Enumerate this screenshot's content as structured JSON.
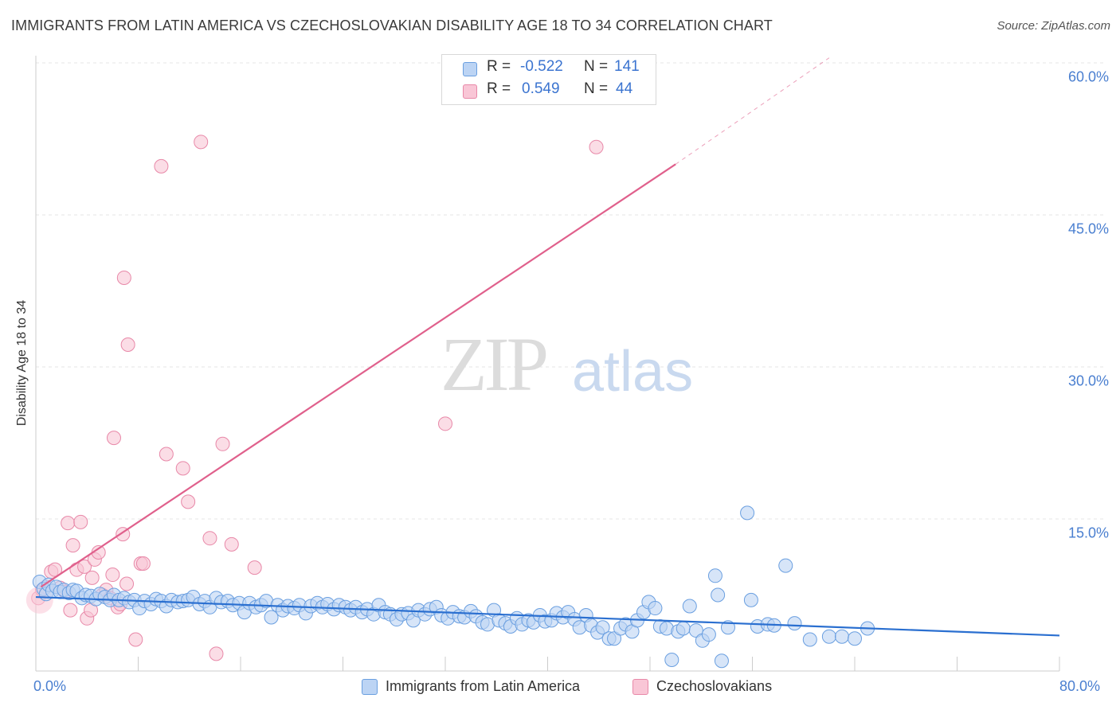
{
  "title": "IMMIGRANTS FROM LATIN AMERICA VS CZECHOSLOVAKIAN DISABILITY AGE 18 TO 34 CORRELATION CHART",
  "source": "Source: ZipAtlas.com",
  "watermark": {
    "zip": "ZIP",
    "atlas": "atlas"
  },
  "stats": {
    "r_label": "R =",
    "n_label": "N =",
    "blue": {
      "r": "-0.522",
      "n": "141"
    },
    "pink": {
      "r": "0.549",
      "n": "44"
    }
  },
  "legend": {
    "blue": "Immigrants from Latin America",
    "pink": "Czechoslovakians"
  },
  "colors": {
    "blue_fill": "#bcd4f4",
    "blue_stroke": "#6a9fe0",
    "blue_line": "#2a6fd0",
    "pink_fill": "#f9c6d6",
    "pink_stroke": "#e888a8",
    "pink_line": "#e0608c",
    "grid": "#e4e4e4",
    "tick_text": "#4a7fd0"
  },
  "chart_data": {
    "type": "scatter",
    "title": "IMMIGRANTS FROM LATIN AMERICA VS CZECHOSLOVAKIAN DISABILITY AGE 18 TO 34 CORRELATION CHART",
    "xlabel": "",
    "ylabel": "Disability Age 18 to 34",
    "xlim": [
      0,
      80
    ],
    "ylim": [
      0,
      62
    ],
    "x_tick_labels": [
      "0.0%",
      "80.0%"
    ],
    "y_ticks": [
      15,
      30,
      45,
      60
    ],
    "y_tick_labels": [
      "15.0%",
      "30.0%",
      "45.0%",
      "60.0%"
    ],
    "grid": true,
    "legend_position": "bottom",
    "series": [
      {
        "name": "Immigrants from Latin America",
        "r": -0.522,
        "n": 141,
        "trend": [
          [
            0,
            7.3
          ],
          [
            80,
            3.5
          ]
        ],
        "points": [
          [
            0.3,
            8.8
          ],
          [
            0.6,
            8.1
          ],
          [
            0.8,
            7.6
          ],
          [
            1.0,
            8.5
          ],
          [
            1.3,
            7.9
          ],
          [
            1.6,
            8.3
          ],
          [
            1.9,
            7.8
          ],
          [
            2.2,
            8.0
          ],
          [
            2.6,
            7.7
          ],
          [
            2.9,
            8.0
          ],
          [
            3.2,
            7.9
          ],
          [
            3.6,
            7.2
          ],
          [
            3.9,
            7.5
          ],
          [
            4.3,
            7.4
          ],
          [
            4.7,
            7.1
          ],
          [
            5.0,
            7.6
          ],
          [
            5.4,
            7.3
          ],
          [
            5.8,
            7.0
          ],
          [
            6.1,
            7.5
          ],
          [
            6.5,
            7.0
          ],
          [
            6.9,
            7.2
          ],
          [
            7.3,
            6.8
          ],
          [
            7.7,
            7.0
          ],
          [
            8.1,
            6.2
          ],
          [
            8.5,
            6.9
          ],
          [
            9.0,
            6.6
          ],
          [
            9.4,
            7.1
          ],
          [
            9.8,
            6.9
          ],
          [
            10.2,
            6.4
          ],
          [
            10.6,
            7.0
          ],
          [
            11.1,
            6.8
          ],
          [
            11.5,
            6.9
          ],
          [
            11.9,
            7.0
          ],
          [
            12.3,
            7.3
          ],
          [
            12.8,
            6.6
          ],
          [
            13.2,
            6.9
          ],
          [
            13.6,
            6.3
          ],
          [
            14.1,
            7.2
          ],
          [
            14.5,
            6.8
          ],
          [
            15.0,
            6.9
          ],
          [
            15.4,
            6.5
          ],
          [
            15.9,
            6.7
          ],
          [
            16.3,
            5.8
          ],
          [
            16.7,
            6.7
          ],
          [
            17.2,
            6.3
          ],
          [
            17.6,
            6.5
          ],
          [
            18.0,
            6.9
          ],
          [
            18.4,
            5.3
          ],
          [
            18.9,
            6.5
          ],
          [
            19.3,
            6.0
          ],
          [
            19.7,
            6.4
          ],
          [
            20.2,
            6.2
          ],
          [
            20.6,
            6.5
          ],
          [
            21.1,
            5.7
          ],
          [
            21.5,
            6.4
          ],
          [
            22.0,
            6.7
          ],
          [
            22.4,
            6.3
          ],
          [
            22.8,
            6.6
          ],
          [
            23.3,
            6.1
          ],
          [
            23.7,
            6.5
          ],
          [
            24.2,
            6.3
          ],
          [
            24.6,
            6.0
          ],
          [
            25.0,
            6.3
          ],
          [
            25.5,
            5.8
          ],
          [
            25.9,
            6.1
          ],
          [
            26.4,
            5.6
          ],
          [
            26.8,
            6.5
          ],
          [
            27.3,
            5.8
          ],
          [
            27.7,
            5.6
          ],
          [
            28.2,
            5.1
          ],
          [
            28.6,
            5.6
          ],
          [
            29.1,
            5.7
          ],
          [
            29.5,
            5.0
          ],
          [
            29.9,
            6.0
          ],
          [
            30.4,
            5.6
          ],
          [
            30.8,
            6.1
          ],
          [
            31.3,
            6.3
          ],
          [
            31.7,
            5.5
          ],
          [
            32.2,
            5.2
          ],
          [
            32.6,
            5.8
          ],
          [
            33.1,
            5.4
          ],
          [
            33.5,
            5.3
          ],
          [
            34.0,
            5.9
          ],
          [
            34.4,
            5.4
          ],
          [
            34.9,
            4.8
          ],
          [
            35.3,
            4.6
          ],
          [
            35.8,
            6.0
          ],
          [
            36.2,
            5.0
          ],
          [
            36.7,
            4.7
          ],
          [
            37.1,
            4.4
          ],
          [
            37.6,
            5.2
          ],
          [
            38.0,
            4.6
          ],
          [
            38.5,
            5.0
          ],
          [
            38.9,
            4.8
          ],
          [
            39.4,
            5.5
          ],
          [
            39.8,
            4.9
          ],
          [
            40.3,
            5.0
          ],
          [
            40.7,
            5.7
          ],
          [
            41.2,
            5.3
          ],
          [
            41.6,
            5.8
          ],
          [
            42.1,
            5.1
          ],
          [
            42.5,
            4.3
          ],
          [
            43.0,
            5.5
          ],
          [
            43.4,
            4.5
          ],
          [
            43.9,
            3.8
          ],
          [
            44.3,
            4.3
          ],
          [
            44.8,
            3.2
          ],
          [
            45.2,
            3.2
          ],
          [
            45.7,
            4.2
          ],
          [
            46.1,
            4.6
          ],
          [
            46.6,
            3.9
          ],
          [
            47.0,
            5.0
          ],
          [
            47.5,
            5.8
          ],
          [
            47.9,
            6.8
          ],
          [
            48.4,
            6.2
          ],
          [
            48.8,
            4.4
          ],
          [
            49.3,
            4.2
          ],
          [
            49.7,
            1.1
          ],
          [
            50.2,
            3.9
          ],
          [
            50.6,
            4.2
          ],
          [
            51.1,
            6.4
          ],
          [
            51.6,
            4.0
          ],
          [
            52.1,
            3.0
          ],
          [
            52.6,
            3.6
          ],
          [
            53.1,
            9.4
          ],
          [
            53.3,
            7.5
          ],
          [
            53.6,
            1.0
          ],
          [
            54.1,
            4.3
          ],
          [
            55.6,
            15.6
          ],
          [
            55.9,
            7.0
          ],
          [
            56.4,
            4.4
          ],
          [
            57.2,
            4.6
          ],
          [
            57.7,
            4.5
          ],
          [
            58.6,
            10.4
          ],
          [
            59.3,
            4.7
          ],
          [
            60.5,
            3.1
          ],
          [
            62.0,
            3.4
          ],
          [
            63.0,
            3.4
          ],
          [
            64.0,
            3.2
          ],
          [
            65.0,
            4.2
          ]
        ]
      },
      {
        "name": "Czechoslovakians",
        "r": 0.549,
        "n": 44,
        "trend": [
          [
            0.4,
            8.3
          ],
          [
            50,
            50.0
          ]
        ],
        "trend_dashed": [
          [
            50,
            50.0
          ],
          [
            62,
            60.5
          ]
        ],
        "points": [
          [
            0.2,
            7.2
          ],
          [
            0.5,
            8.0
          ],
          [
            0.8,
            8.3
          ],
          [
            1.2,
            9.8
          ],
          [
            1.5,
            10.0
          ],
          [
            1.9,
            8.2
          ],
          [
            2.3,
            7.8
          ],
          [
            2.5,
            14.6
          ],
          [
            2.7,
            6.0
          ],
          [
            2.9,
            12.4
          ],
          [
            3.2,
            10.0
          ],
          [
            3.5,
            14.7
          ],
          [
            3.8,
            10.3
          ],
          [
            4.0,
            5.2
          ],
          [
            4.3,
            6.0
          ],
          [
            4.4,
            9.2
          ],
          [
            4.6,
            11.0
          ],
          [
            4.9,
            11.7
          ],
          [
            5.2,
            7.5
          ],
          [
            5.5,
            8.0
          ],
          [
            5.8,
            7.2
          ],
          [
            6.0,
            9.5
          ],
          [
            6.1,
            23.0
          ],
          [
            6.4,
            6.3
          ],
          [
            6.6,
            6.6
          ],
          [
            6.8,
            13.5
          ],
          [
            6.9,
            38.8
          ],
          [
            7.1,
            8.6
          ],
          [
            7.2,
            32.2
          ],
          [
            7.8,
            3.1
          ],
          [
            8.2,
            10.6
          ],
          [
            8.4,
            10.6
          ],
          [
            9.8,
            49.8
          ],
          [
            10.2,
            21.4
          ],
          [
            11.5,
            20.0
          ],
          [
            11.9,
            16.7
          ],
          [
            12.9,
            52.2
          ],
          [
            13.6,
            13.1
          ],
          [
            14.1,
            1.7
          ],
          [
            14.6,
            22.4
          ],
          [
            15.3,
            12.5
          ],
          [
            17.1,
            10.2
          ],
          [
            32.0,
            24.4
          ],
          [
            43.8,
            51.7
          ]
        ]
      }
    ]
  }
}
